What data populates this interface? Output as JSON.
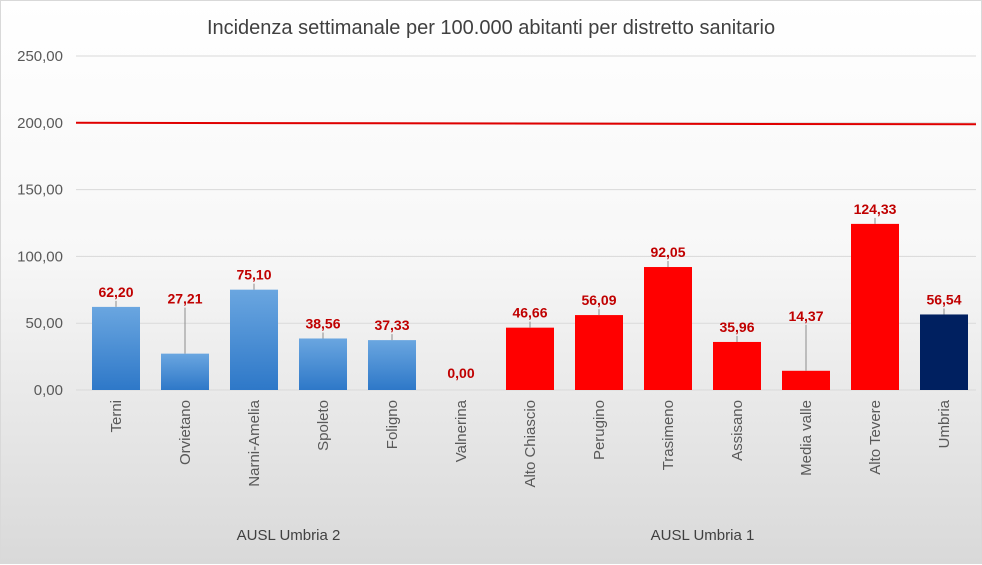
{
  "chart_data": {
    "type": "bar",
    "title": "Incidenza settimanale per 100.000 abitanti per distretto sanitario",
    "categories": [
      "Terni",
      "Orvietano",
      "Narni-Amelia",
      "Spoleto",
      "Foligno",
      "Valnerina",
      "Alto Chiascio",
      "Perugino",
      "Trasimeno",
      "Assisano",
      "Media valle",
      "Alto Tevere",
      "Umbria"
    ],
    "values": [
      62.2,
      27.21,
      75.1,
      38.56,
      37.33,
      0.0,
      46.66,
      56.09,
      92.05,
      35.96,
      14.37,
      124.33,
      56.54
    ],
    "value_labels": [
      "62,20",
      "27,21",
      "75,10",
      "38,56",
      "37,33",
      "0,00",
      "46,66",
      "56,09",
      "92,05",
      "35,96",
      "14,37",
      "124,33",
      "56,54"
    ],
    "groups": [
      {
        "label": "AUSL Umbria 2",
        "categories": [
          "Terni",
          "Orvietano",
          "Narni-Amelia",
          "Spoleto",
          "Foligno",
          "Valnerina"
        ],
        "color": "#4a90d9"
      },
      {
        "label": "AUSL Umbria 1",
        "categories": [
          "Alto Chiascio",
          "Perugino",
          "Trasimeno",
          "Assisano",
          "Media valle",
          "Alto Tevere"
        ],
        "color": "#ff0000"
      },
      {
        "label": "",
        "categories": [
          "Umbria"
        ],
        "color": "#002060"
      }
    ],
    "ylim": [
      0,
      250
    ],
    "yticks": [
      0,
      50,
      100,
      150,
      200,
      250
    ],
    "ytick_labels": [
      "0,00",
      "50,00",
      "100,00",
      "150,00",
      "200,00",
      "250,00"
    ],
    "threshold": {
      "value": 200,
      "color": "#e00000"
    },
    "grid": true,
    "xlabel": "",
    "ylabel": ""
  }
}
